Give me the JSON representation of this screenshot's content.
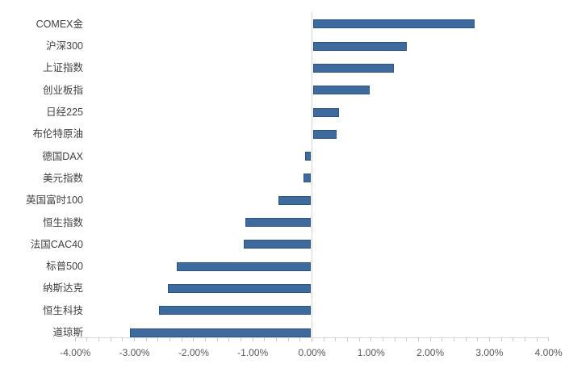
{
  "chart_data": {
    "type": "bar",
    "orientation": "horizontal",
    "title": "",
    "xlabel": "",
    "ylabel": "",
    "categories": [
      "COMEX金",
      "沪深300",
      "上证指数",
      "创业板指",
      "日经225",
      "布伦特原油",
      "德国DAX",
      "美元指数",
      "英国富时100",
      "恒生指数",
      "法国CAC40",
      "标普500",
      "纳斯达克",
      "恒生科技",
      "道琼斯"
    ],
    "values": [
      2.75,
      1.6,
      1.39,
      0.97,
      0.46,
      0.42,
      -0.11,
      -0.15,
      -0.56,
      -1.13,
      -1.15,
      -2.29,
      -2.43,
      -2.59,
      -3.07
    ],
    "value_unit": "%",
    "xlim": [
      -4,
      4
    ],
    "x_major_step": 1,
    "x_minor_step": 0.2,
    "x_tick_labels": [
      "-4.00%",
      "-3.00%",
      "-2.00%",
      "-1.00%",
      "0.00%",
      "1.00%",
      "2.00%",
      "3.00%",
      "4.00%"
    ],
    "grid": false,
    "legend_position": "none",
    "colors": {
      "bar_fill": "#3e6a9e",
      "bar_border": "#2c5581",
      "axis_line": "#d9d9d9",
      "tick": "#c9c9c9",
      "category_label": "#404040",
      "axis_label": "#595959",
      "background": "#ffffff"
    }
  }
}
